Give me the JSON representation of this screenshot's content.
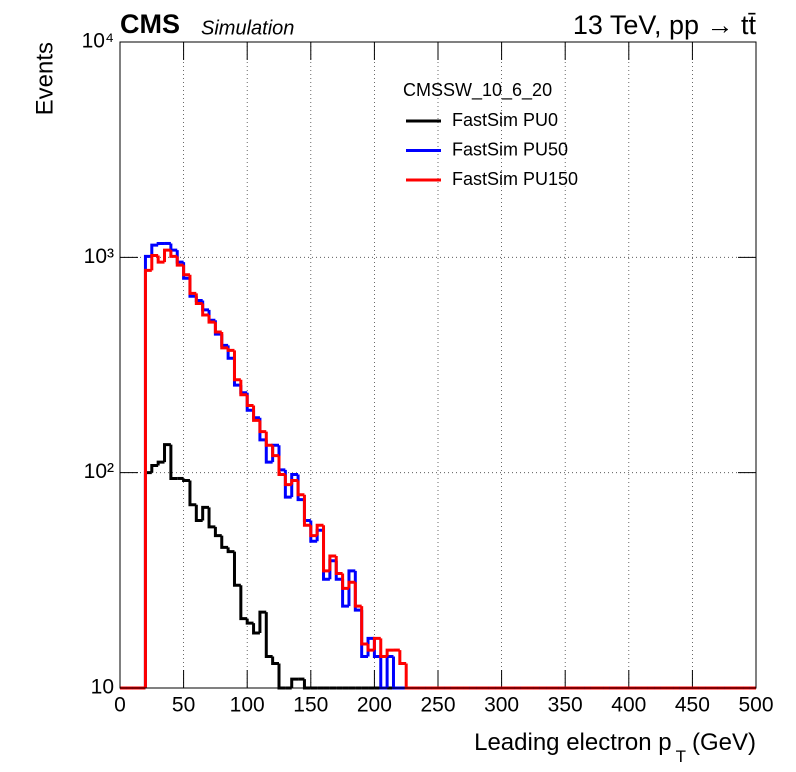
{
  "chart_data": {
    "type": "histogram",
    "experiment": "CMS",
    "subtitle": "Simulation",
    "energy_label": "13 TeV, pp → tt̄",
    "xlabel": {
      "text": "Leading electron p",
      "subscript": "T",
      "unit": "(GeV)"
    },
    "ylabel": "Events",
    "legend_title": "CMSSW_10_6_20",
    "legend_position": "top-center",
    "log_y": true,
    "grid": true,
    "xlim": [
      0,
      500
    ],
    "xticks": [
      0,
      50,
      100,
      150,
      200,
      250,
      300,
      350,
      400,
      450,
      500
    ],
    "ylim": [
      10,
      10000
    ],
    "yticks": [
      10,
      {
        "value": 100,
        "label": "10²"
      },
      {
        "value": 1000,
        "label": "10³"
      },
      {
        "value": 10000,
        "label": "10⁴"
      }
    ],
    "bins": [
      0,
      5,
      10,
      15,
      20,
      25,
      30,
      35,
      40,
      45,
      50,
      55,
      60,
      65,
      70,
      75,
      80,
      85,
      90,
      95,
      100,
      105,
      110,
      115,
      120,
      125,
      130,
      135,
      140,
      145,
      150,
      155,
      160,
      165,
      170,
      175,
      180,
      185,
      190,
      195,
      200,
      205,
      210,
      215,
      220,
      225,
      230,
      235,
      240,
      245,
      250,
      255,
      260,
      265,
      270,
      275,
      280,
      285,
      290,
      295,
      300,
      305,
      310,
      315,
      320,
      325,
      330,
      335,
      340,
      345,
      350,
      355,
      360,
      365,
      370,
      375,
      380,
      385,
      390,
      395,
      400,
      405,
      410,
      415,
      420,
      425,
      430,
      435,
      440,
      445,
      450,
      455,
      460,
      465,
      470,
      475,
      480,
      485,
      490,
      495,
      500
    ],
    "series": [
      {
        "name": "FastSim PU0",
        "color": "#000000",
        "values": [
          0,
          0,
          0,
          0,
          100,
          108,
          112,
          135,
          94,
          94,
          92,
          71,
          60,
          69,
          56,
          51,
          45,
          43,
          30,
          21,
          20,
          18,
          22.5,
          14,
          13,
          0,
          0,
          11,
          11,
          0,
          0,
          0,
          0,
          0,
          0,
          0,
          0,
          0,
          0,
          0,
          0,
          0,
          0,
          0,
          0,
          0,
          0,
          0,
          0,
          0,
          0,
          0,
          0,
          0,
          0,
          0,
          0,
          0,
          0,
          0,
          0,
          0,
          0,
          0,
          0,
          0,
          0,
          0,
          0,
          0,
          0,
          0,
          0,
          0,
          0,
          0,
          0,
          0,
          0,
          0,
          0,
          0,
          0,
          0,
          0,
          0,
          0,
          0,
          0,
          0,
          0,
          0,
          0,
          0,
          0,
          0,
          0,
          0,
          0,
          0
        ]
      },
      {
        "name": "FastSim PU50",
        "color": "#0000ff",
        "values": [
          0,
          0,
          0,
          0,
          1010,
          1140,
          1160,
          1160,
          1080,
          950,
          800,
          660,
          630,
          570,
          510,
          440,
          390,
          340,
          255,
          235,
          195,
          180,
          142,
          112,
          134,
          103,
          77,
          98,
          75,
          60,
          48,
          54,
          32,
          39,
          32,
          24,
          35,
          23,
          14,
          17,
          14,
          0,
          14,
          0,
          0,
          0,
          0,
          0,
          0,
          0,
          0,
          0,
          0,
          0,
          0,
          0,
          0,
          0,
          0,
          0,
          0,
          0,
          0,
          0,
          0,
          0,
          0,
          0,
          0,
          0,
          0,
          0,
          0,
          0,
          0,
          0,
          0,
          0,
          0,
          0,
          0,
          0,
          0,
          0,
          0,
          0,
          0,
          0,
          0,
          0,
          0,
          0,
          0,
          0,
          0,
          0,
          0,
          0,
          0,
          0
        ]
      },
      {
        "name": "FastSim PU150",
        "color": "#ff0000",
        "values": [
          0,
          0,
          0,
          0,
          870,
          1020,
          950,
          1080,
          1010,
          920,
          830,
          680,
          610,
          540,
          500,
          450,
          380,
          370,
          270,
          230,
          205,
          175,
          155,
          134,
          120,
          98,
          88,
          92,
          79,
          57,
          51,
          57,
          35,
          41,
          34,
          29,
          31,
          24,
          16,
          15,
          17,
          14,
          15,
          15,
          13,
          0,
          0,
          0,
          0,
          0,
          0,
          0,
          0,
          0,
          0,
          0,
          0,
          0,
          0,
          0,
          0,
          0,
          0,
          0,
          0,
          0,
          0,
          0,
          0,
          0,
          0,
          0,
          0,
          0,
          0,
          0,
          0,
          0,
          0,
          0,
          0,
          0,
          0,
          0,
          0,
          0,
          0,
          0,
          0,
          0,
          0,
          0,
          0,
          0,
          0,
          0,
          0,
          0,
          0,
          0
        ]
      }
    ]
  }
}
